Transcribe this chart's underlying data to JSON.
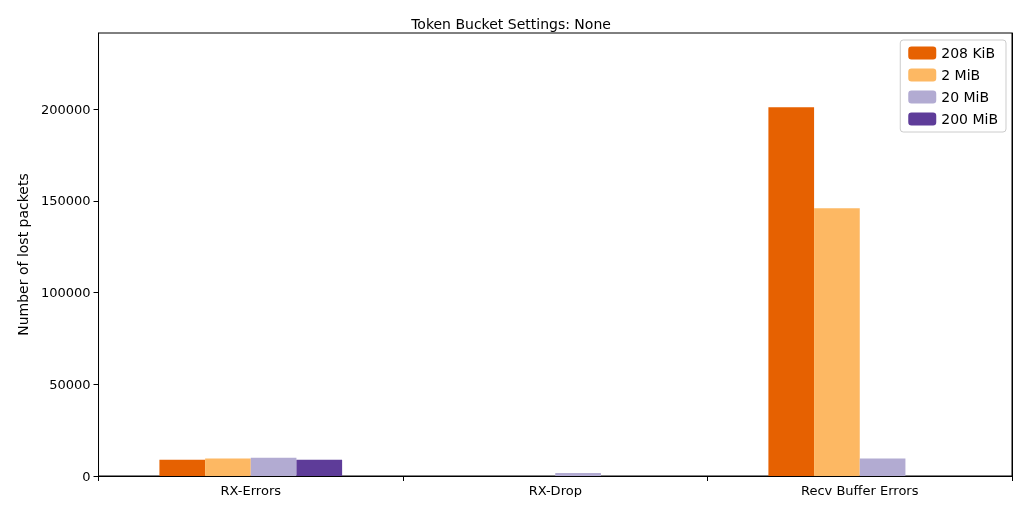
{
  "chart_data": {
    "type": "bar",
    "title": "Token Bucket Settings: None",
    "ylabel": "Number of lost packets",
    "categories": [
      "RX-Errors",
      "RX-Drop",
      "Recv Buffer Errors"
    ],
    "series": [
      {
        "name": "208 KiB",
        "color": "#e66101",
        "values": [
          8900,
          0,
          201000
        ]
      },
      {
        "name": "2 MiB",
        "color": "#fdb863",
        "values": [
          9500,
          0,
          146000
        ]
      },
      {
        "name": "20 MiB",
        "color": "#b2abd2",
        "values": [
          10000,
          1600,
          9500
        ]
      },
      {
        "name": "200 MiB",
        "color": "#5e3c99",
        "values": [
          8900,
          0,
          0
        ]
      }
    ],
    "ylim": [
      0,
      241500
    ],
    "yticks": [
      0,
      50000,
      100000,
      150000,
      200000
    ],
    "grid": false,
    "legend": "top right"
  }
}
